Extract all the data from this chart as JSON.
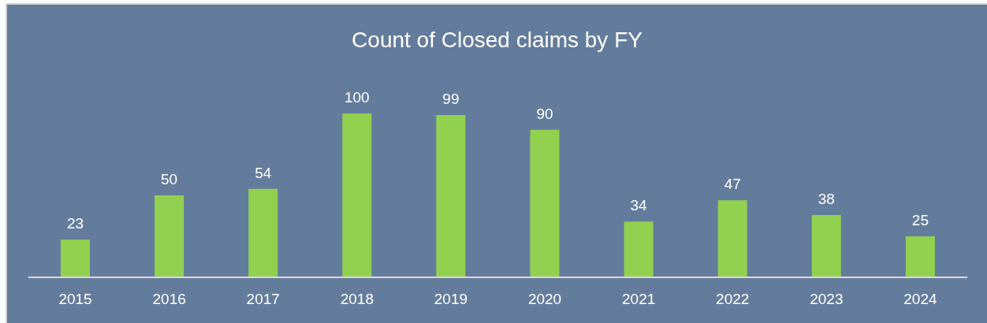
{
  "chart_data": {
    "type": "bar",
    "title": "Count of Closed claims by FY",
    "categories": [
      "2015",
      "2016",
      "2017",
      "2018",
      "2019",
      "2020",
      "2021",
      "2022",
      "2023",
      "2024"
    ],
    "values": [
      23,
      50,
      54,
      100,
      99,
      90,
      34,
      47,
      38,
      25
    ],
    "color": "#92d050",
    "data_labels": true,
    "tick_labels": "x"
  }
}
